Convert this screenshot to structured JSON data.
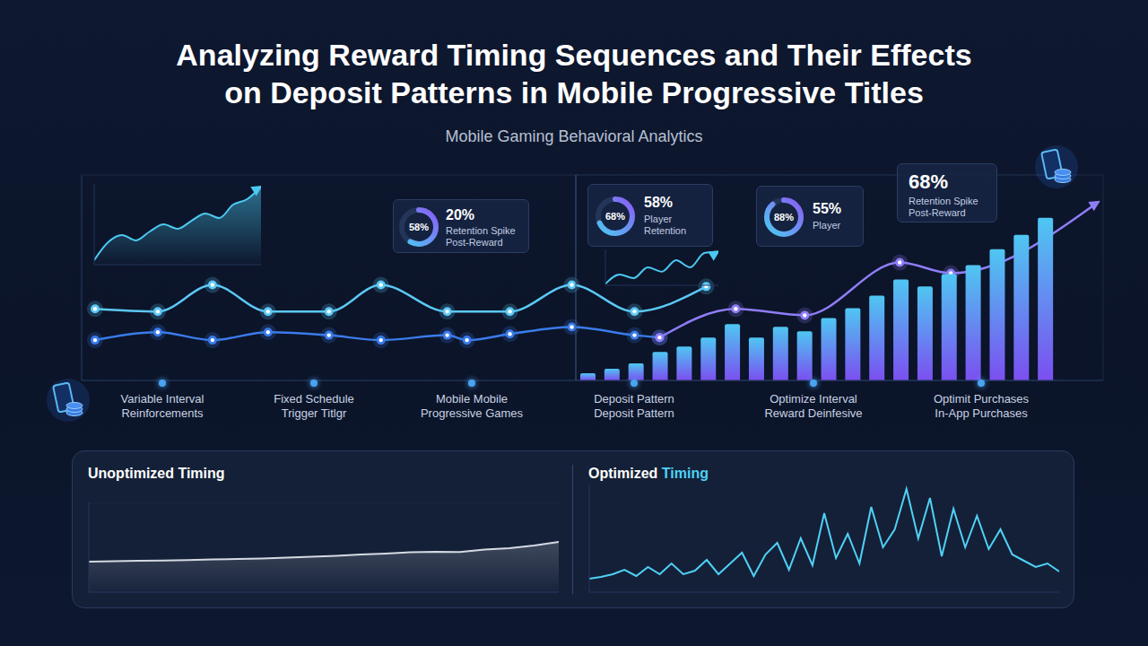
{
  "title": "Analyzing Reward Timing Sequences and Their Effects\non Deposit Patterns in Mobile Progressive Titles",
  "subtitle": "Mobile Gaming Behavioral Analytics",
  "chart_data": [
    {
      "type": "line",
      "x": [
        1.5,
        8.5,
        14.6,
        20.8,
        27.6,
        33.4,
        40.8,
        43,
        47.8,
        54.7,
        61.7,
        64.5,
        69.7,
        73,
        80.7,
        91.3,
        97,
        113.5
      ],
      "xlim": [
        0,
        114
      ],
      "xticks": [
        0,
        10,
        20,
        30,
        40,
        50,
        60,
        70,
        80,
        90,
        100,
        110
      ],
      "ylim": [
        0,
        100
      ],
      "yticks": [
        0,
        20,
        40,
        60,
        80,
        100
      ],
      "grid": true,
      "tick_labels": false,
      "series": [
        {
          "color": "#5cc8f5",
          "marker": "circle",
          "values": [
            34.8,
            33.5,
            46.5,
            33.5,
            33.5,
            46.5,
            33.5,
            null,
            33.5,
            46.5,
            33.5,
            null,
            45.7,
            null,
            null,
            null,
            null,
            null
          ]
        },
        {
          "color": "#3a7bea",
          "marker": "circle",
          "values": [
            19.6,
            23.5,
            19.6,
            23.5,
            22,
            19.6,
            22,
            19.6,
            22.6,
            26,
            22,
            20.9,
            null,
            null,
            null,
            null,
            null,
            null
          ]
        },
        {
          "color": "#8f7df7",
          "marker": "circle",
          "values": [
            null,
            null,
            null,
            null,
            null,
            null,
            null,
            null,
            null,
            null,
            null,
            20.9,
            null,
            34.8,
            31.7,
            57.4,
            52.2,
            87
          ]
        }
      ]
    },
    {
      "type": "bar",
      "categories": [
        null,
        null,
        null,
        null,
        null,
        null,
        null,
        null,
        null,
        null,
        null,
        null,
        null,
        null,
        null,
        null,
        null,
        null,
        null,
        null
      ],
      "values": [
        3.5,
        5.7,
        8.3,
        13.9,
        16.5,
        20.9,
        27.4,
        20.9,
        26.1,
        23.9,
        30.4,
        35.2,
        41.3,
        49.1,
        45.7,
        51.7,
        56.1,
        63.9,
        70.9,
        79.1
      ],
      "color": "#4fc6f2",
      "ylim": [
        0,
        100
      ],
      "yticks": [
        0,
        20,
        40,
        60,
        80,
        100
      ],
      "grid": true,
      "tick_labels": false
    },
    {
      "type": "area",
      "x": [
        0,
        1,
        2,
        3,
        4,
        5,
        6,
        7,
        8,
        9,
        10,
        11,
        12
      ],
      "values": [
        5.6,
        27.8,
        36.7,
        30,
        41.1,
        50,
        44.4,
        54.4,
        63.3,
        57.8,
        74.4,
        81.1,
        96.7
      ],
      "color": "#4cc9f0",
      "xlim": [
        0,
        12
      ],
      "xticks": [
        0,
        12
      ],
      "ylim": [
        0,
        100
      ],
      "yticks": [
        0,
        100
      ],
      "tick_labels": false
    },
    {
      "type": "line",
      "x": [
        0,
        1,
        2,
        3,
        4,
        5,
        6,
        7,
        8
      ],
      "values": [
        4,
        30,
        20,
        50,
        38,
        70,
        50,
        90,
        94
      ],
      "color": "#4cc9f0",
      "xlim": [
        0,
        8
      ],
      "xticks": [
        0,
        8
      ],
      "ylim": [
        0,
        100
      ],
      "yticks": [
        0,
        100
      ],
      "tick_labels": false
    },
    {
      "type": "area",
      "title": "Unoptimized Timing",
      "x": [
        0,
        1,
        2,
        3,
        4,
        5,
        6,
        7,
        8,
        9,
        10,
        11,
        12,
        13,
        14,
        15,
        16,
        17,
        18,
        19
      ],
      "values": [
        34,
        34.5,
        35,
        35.2,
        35.8,
        36.5,
        37,
        37.6,
        38.5,
        39.5,
        40.5,
        42,
        43,
        44.5,
        45,
        44.8,
        47.5,
        49,
        52,
        56
      ],
      "color": "#d5dae3",
      "xlim": [
        0,
        19
      ],
      "xticks": [
        0,
        19
      ],
      "ylim": [
        0,
        100
      ],
      "yticks": [
        0,
        30,
        60,
        90
      ],
      "grid": true,
      "tick_labels": false
    },
    {
      "type": "line",
      "title": "Optimized Timing",
      "x": [
        0,
        1,
        2,
        3,
        4,
        5,
        6,
        7,
        8,
        9,
        10,
        11,
        12,
        13,
        14,
        15,
        16,
        17,
        18,
        19,
        20,
        21,
        22,
        23,
        24,
        25,
        26,
        27,
        28,
        29,
        30,
        31,
        32,
        33,
        34,
        35,
        36,
        37,
        38,
        39,
        40
      ],
      "values": [
        15,
        17,
        20,
        25,
        18,
        28,
        20,
        32,
        20,
        24,
        36,
        20,
        32,
        44,
        18,
        42,
        55,
        25,
        60,
        30,
        88,
        38,
        65,
        32,
        95,
        50,
        70,
        115,
        60,
        105,
        40,
        93,
        50,
        85,
        48,
        70,
        42,
        35,
        28,
        32,
        23
      ],
      "color": "#4fd1f5",
      "xlim": [
        0,
        40
      ],
      "xticks": [
        0,
        40
      ],
      "ylim": [
        0,
        120
      ],
      "yticks": [
        0,
        120
      ],
      "tick_labels": false
    }
  ],
  "stage_labels": [
    "Variable Interval\nReinforcements",
    "Fixed Schedule\nTrigger Titlgr",
    "Mobile Mobile\nProgressive Games",
    "Deposit Pattern\nDeposit Pattern",
    "Optimize Interval\nReward Deinfesive",
    "Optimit Purchases\nIn-App Purchases"
  ],
  "cards": [
    {
      "ring": {
        "value": 58,
        "label": "58%"
      },
      "value": "20%",
      "text": "Retention Spike\nPost-Reward"
    },
    {
      "ring": {
        "value": 68,
        "label": "68%"
      },
      "value": "58%",
      "text": "Player\nRetention"
    },
    {
      "ring": {
        "value": 88,
        "label": "88%"
      },
      "value": "55%",
      "text": "Player"
    },
    {
      "value": "68%",
      "text": "Retention Spike\nPost-Reward"
    }
  ]
}
